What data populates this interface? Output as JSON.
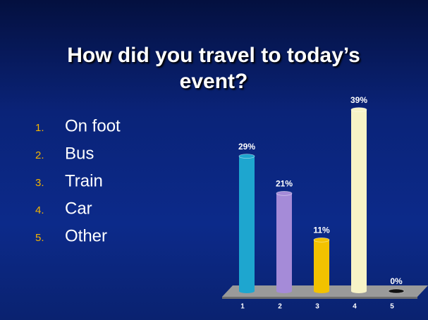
{
  "title": "How did you travel to today’s event?",
  "options": [
    {
      "number": "1.",
      "label": "On foot"
    },
    {
      "number": "2.",
      "label": "Bus"
    },
    {
      "number": "3.",
      "label": "Train"
    },
    {
      "number": "4.",
      "label": "Car"
    },
    {
      "number": "5.",
      "label": "Other"
    }
  ],
  "chart_data": {
    "type": "bar",
    "categories": [
      "1",
      "2",
      "3",
      "4",
      "5"
    ],
    "values": [
      29,
      21,
      11,
      39,
      0
    ],
    "value_labels": [
      "29%",
      "21%",
      "11%",
      "39%",
      "0%"
    ],
    "colors": [
      "#1ea6cf",
      "#a58bd8",
      "#f2c200",
      "#f7f3c6",
      "#111111"
    ]
  }
}
